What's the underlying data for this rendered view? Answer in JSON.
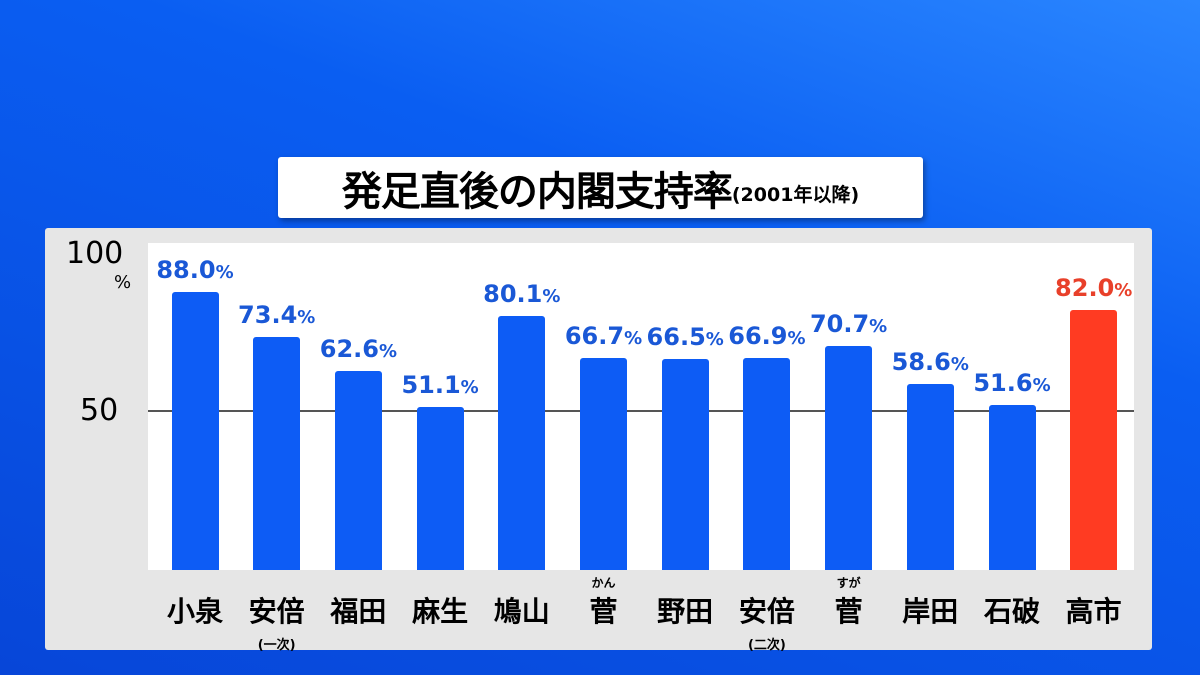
{
  "title": {
    "main": "発足直後の内閣支持率",
    "sub": "(2001年以降)"
  },
  "colors": {
    "bar": "#0d5cf5",
    "highlight": "#ff3b22",
    "label": "#1a58d6",
    "highlight_label": "#e8402a"
  },
  "chart_data": {
    "type": "bar",
    "title": "発足直後の内閣支持率(2001年以降)",
    "unit": "%",
    "ylim": [
      0,
      100
    ],
    "yticks": [
      "100",
      "50"
    ],
    "categories": [
      {
        "name": "小泉"
      },
      {
        "name": "安倍",
        "note": "(一次)"
      },
      {
        "name": "福田"
      },
      {
        "name": "麻生"
      },
      {
        "name": "鳩山"
      },
      {
        "name": "菅",
        "ruby": "かん"
      },
      {
        "name": "野田"
      },
      {
        "name": "安倍",
        "note": "(二次)"
      },
      {
        "name": "菅",
        "ruby": "すが"
      },
      {
        "name": "岸田"
      },
      {
        "name": "石破"
      },
      {
        "name": "高市"
      }
    ],
    "values": [
      88.0,
      73.4,
      62.6,
      51.1,
      80.1,
      66.7,
      66.5,
      66.9,
      70.7,
      58.6,
      51.6,
      82.0
    ],
    "labels": [
      "88.0",
      "73.4",
      "62.6",
      "51.1",
      "80.1",
      "66.7",
      "66.5",
      "66.9",
      "70.7",
      "58.6",
      "51.6",
      "82.0"
    ],
    "highlight_index": 11,
    "gridline_at": 50
  }
}
